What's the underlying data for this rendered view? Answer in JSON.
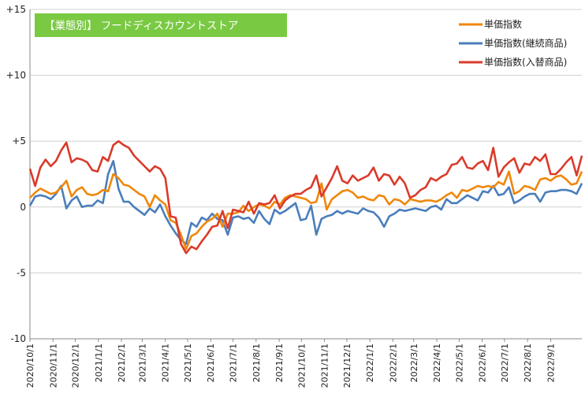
{
  "chart_data": {
    "type": "line",
    "title": "【業態別】 フードディスカウントストア",
    "title_bg_color": "#7ac943",
    "ylim": [
      -10,
      15
    ],
    "yticks": [
      {
        "v": 15,
        "label": "+15"
      },
      {
        "v": 10,
        "label": "+10"
      },
      {
        "v": 5,
        "label": "+5"
      },
      {
        "v": 0,
        "label": "0"
      },
      {
        "v": -5,
        "label": "-5"
      },
      {
        "v": -10,
        "label": "-10"
      }
    ],
    "x_tick_labels": [
      "2020/10/1",
      "2020/11/1",
      "2020/12/1",
      "2021/1/1",
      "2021/2/1",
      "2021/3/1",
      "2021/4/1",
      "2021/5/1",
      "2021/6/1",
      "2021/7/1",
      "2021/8/1",
      "2021/9/1",
      "2021/10/1",
      "2021/11/1",
      "2021/12/1",
      "2022/1/1",
      "2022/2/1",
      "2022/3/1",
      "2022/4/1",
      "2022/5/1",
      "2022/6/1",
      "2022/7/1",
      "2022/8/1",
      "2022/9/1"
    ],
    "x_tick_weeks": [
      0,
      4.43,
      8.71,
      13.14,
      17.57,
      21.57,
      26,
      30.29,
      34.71,
      39,
      43.43,
      47.86,
      52.14,
      56.57,
      60.86,
      65.29,
      69.71,
      73.71,
      78.14,
      82.43,
      86.86,
      91.14,
      95.57,
      100
    ],
    "grid": "horizontal",
    "legend_position": "top-right",
    "series": [
      {
        "name": "単価指数",
        "color": "#f0870a",
        "values": [
          0.7,
          1.1,
          1.4,
          1.2,
          1.0,
          1.1,
          1.5,
          2.0,
          0.8,
          1.3,
          1.5,
          1.0,
          0.9,
          1.0,
          1.3,
          1.2,
          2.5,
          2.2,
          1.7,
          1.6,
          1.3,
          1.0,
          0.8,
          0.0,
          0.9,
          0.5,
          0.2,
          -1.0,
          -1.2,
          -2.1,
          -3.2,
          -2.2,
          -2.0,
          -1.5,
          -1.1,
          -0.9,
          -0.5,
          -1.5,
          -0.5,
          -0.5,
          -0.4,
          0.1,
          -0.3,
          0.0,
          0.2,
          0.1,
          -0.1,
          0.4,
          0.2,
          0.7,
          0.9,
          0.8,
          0.7,
          0.6,
          0.3,
          0.4,
          1.8,
          -0.2,
          0.6,
          0.9,
          1.2,
          1.3,
          1.1,
          0.7,
          0.8,
          0.6,
          0.5,
          0.9,
          0.8,
          0.2,
          0.6,
          0.5,
          0.2,
          0.6,
          0.5,
          0.4,
          0.5,
          0.5,
          0.4,
          0.6,
          0.9,
          1.1,
          0.7,
          1.3,
          1.2,
          1.4,
          1.6,
          1.5,
          1.6,
          1.5,
          1.9,
          1.7,
          2.7,
          1.0,
          1.2,
          1.6,
          1.5,
          1.3,
          2.1,
          2.2,
          2.0,
          2.3,
          2.4,
          2.1,
          1.7,
          1.8,
          2.7
        ]
      },
      {
        "name": "単価指数(継続商品)",
        "color": "#4a7ebb",
        "values": [
          0.1,
          0.8,
          0.9,
          0.8,
          0.6,
          1.0,
          1.6,
          -0.1,
          0.5,
          0.8,
          0.0,
          0.1,
          0.1,
          0.5,
          0.3,
          2.5,
          3.5,
          1.4,
          0.4,
          0.4,
          0.0,
          -0.3,
          -0.6,
          -0.1,
          -0.4,
          0.2,
          -0.7,
          -1.4,
          -2.0,
          -2.5,
          -2.8,
          -1.2,
          -1.5,
          -0.8,
          -1.0,
          -0.5,
          -0.9,
          -1.0,
          -2.1,
          -0.8,
          -0.7,
          -0.9,
          -0.8,
          -1.2,
          -0.3,
          -0.9,
          -1.3,
          -0.2,
          -0.5,
          -0.3,
          0.0,
          0.3,
          -1.0,
          -0.9,
          0.1,
          -2.1,
          -0.9,
          -0.7,
          -0.6,
          -0.3,
          -0.5,
          -0.3,
          -0.4,
          -0.5,
          -0.1,
          -0.3,
          -0.4,
          -0.8,
          -1.5,
          -0.7,
          -0.5,
          -0.2,
          -0.3,
          -0.2,
          -0.1,
          -0.2,
          -0.3,
          0.0,
          0.1,
          -0.2,
          0.6,
          0.3,
          0.3,
          0.6,
          0.9,
          0.7,
          0.5,
          1.2,
          1.1,
          1.6,
          0.9,
          1.0,
          1.5,
          0.3,
          0.5,
          0.8,
          1.0,
          1.0,
          0.4,
          1.1,
          1.2,
          1.2,
          1.3,
          1.3,
          1.2,
          1.0,
          1.8
        ]
      },
      {
        "name": "単価指数(入替商品)",
        "color": "#d93b2b",
        "values": [
          2.9,
          1.6,
          3.0,
          3.6,
          3.1,
          3.5,
          4.3,
          4.9,
          3.4,
          3.7,
          3.6,
          3.4,
          2.8,
          2.7,
          3.8,
          3.5,
          4.7,
          5.0,
          4.7,
          4.5,
          3.9,
          3.5,
          3.1,
          2.7,
          3.1,
          2.9,
          2.2,
          -0.7,
          -0.8,
          -2.8,
          -3.5,
          -3.0,
          -3.2,
          -2.6,
          -2.1,
          -1.5,
          -1.4,
          -0.3,
          -1.6,
          -0.2,
          -0.3,
          -0.4,
          0.4,
          -0.5,
          0.3,
          0.2,
          0.3,
          0.9,
          -0.1,
          0.5,
          0.8,
          1.0,
          1.0,
          1.3,
          1.5,
          2.4,
          0.8,
          1.5,
          2.2,
          3.1,
          2.0,
          1.8,
          2.4,
          2.0,
          2.2,
          2.4,
          3.0,
          2.0,
          2.5,
          2.4,
          1.7,
          2.3,
          1.8,
          0.7,
          0.9,
          1.3,
          1.5,
          2.2,
          2.0,
          2.3,
          2.5,
          3.2,
          3.3,
          3.8,
          3.0,
          2.9,
          3.3,
          3.5,
          2.8,
          4.5,
          2.3,
          3.0,
          3.4,
          3.7,
          2.6,
          3.3,
          3.2,
          3.8,
          3.5,
          4.0,
          2.5,
          2.5,
          2.9,
          3.4,
          3.8,
          2.4,
          3.9
        ]
      }
    ]
  }
}
